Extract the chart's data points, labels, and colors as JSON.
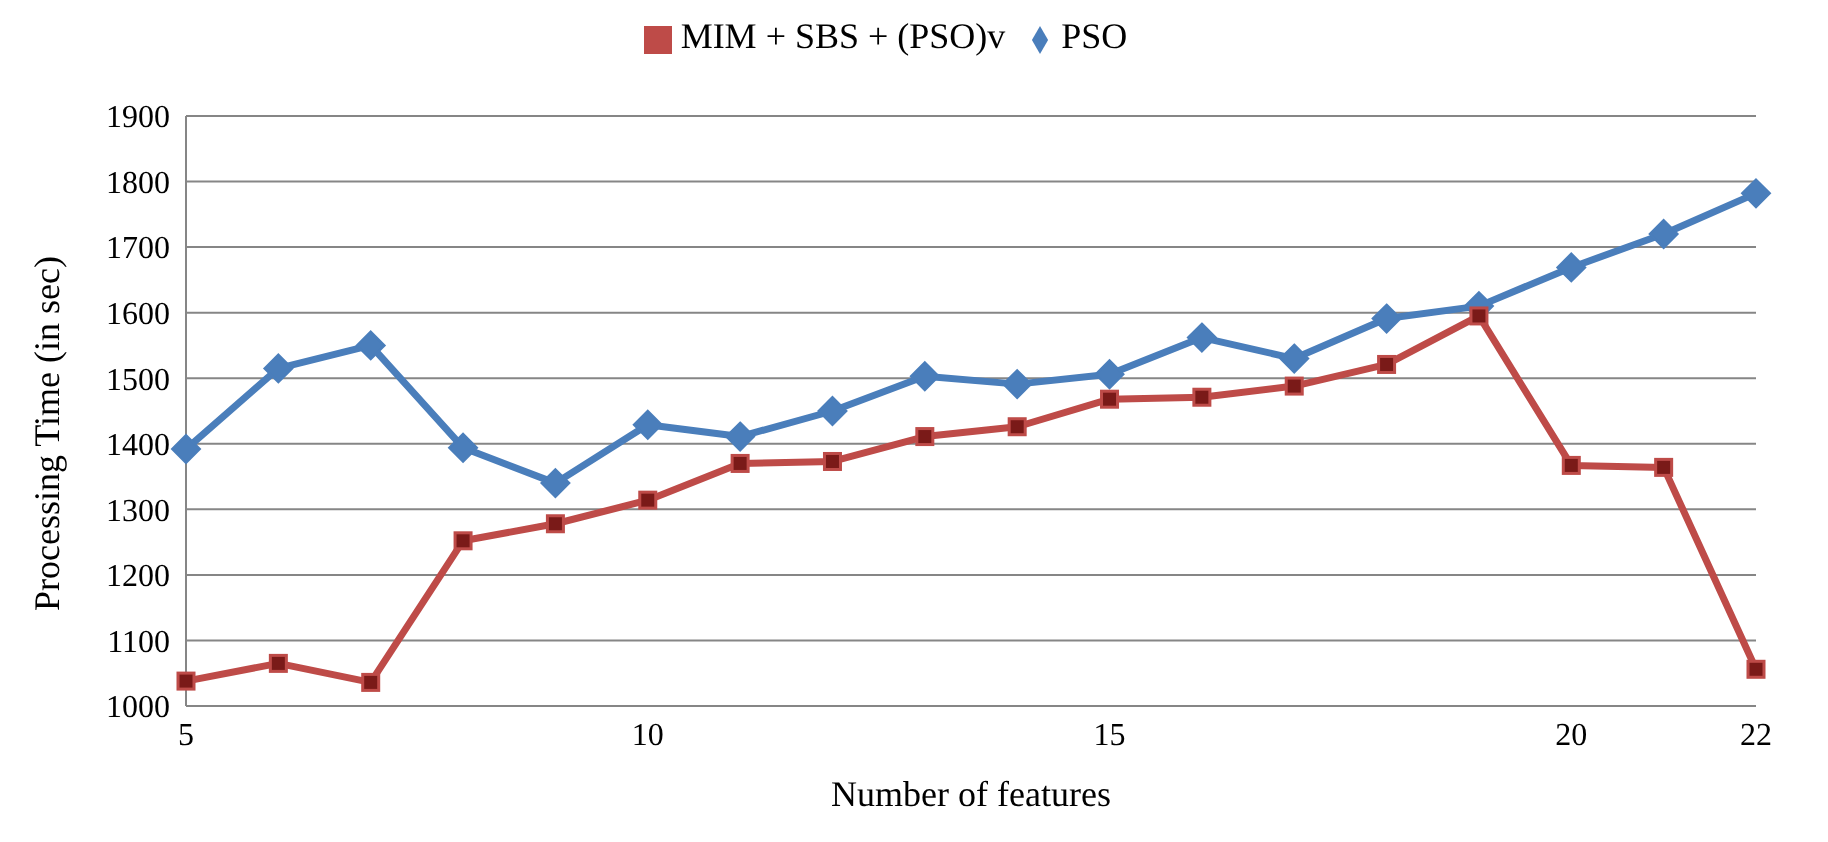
{
  "chart_data": {
    "type": "line",
    "xlabel": "Number of features",
    "ylabel": "Processing Time (in sec)",
    "categories": [
      "5",
      null,
      null,
      null,
      null,
      "10",
      null,
      null,
      null,
      null,
      "15",
      null,
      null,
      null,
      null,
      "20",
      null,
      "22"
    ],
    "series": [
      {
        "name": "PSO",
        "color": "#4a7ebb",
        "marker": "diamond",
        "values": [
          1392,
          1515,
          1550,
          1394,
          1340,
          1429,
          1411,
          1450,
          1503,
          1491,
          1506,
          1562,
          1530,
          1591,
          1610,
          1669,
          1720,
          1782
        ]
      },
      {
        "name": "MIM + SBS + (PSO)v",
        "color": "#be4b48",
        "marker": "square",
        "values": [
          1038,
          1065,
          1036,
          1252,
          1278,
          1314,
          1370,
          1373,
          1411,
          1426,
          1468,
          1471,
          1488,
          1521,
          1595,
          1367,
          1364,
          1056
        ]
      }
    ],
    "ylim": [
      1000,
      1900
    ],
    "yticks": [
      1000,
      1100,
      1200,
      1300,
      1400,
      1500,
      1600,
      1700,
      1800,
      1900
    ],
    "grid": "y",
    "legend": "top",
    "line_style": "solid"
  }
}
